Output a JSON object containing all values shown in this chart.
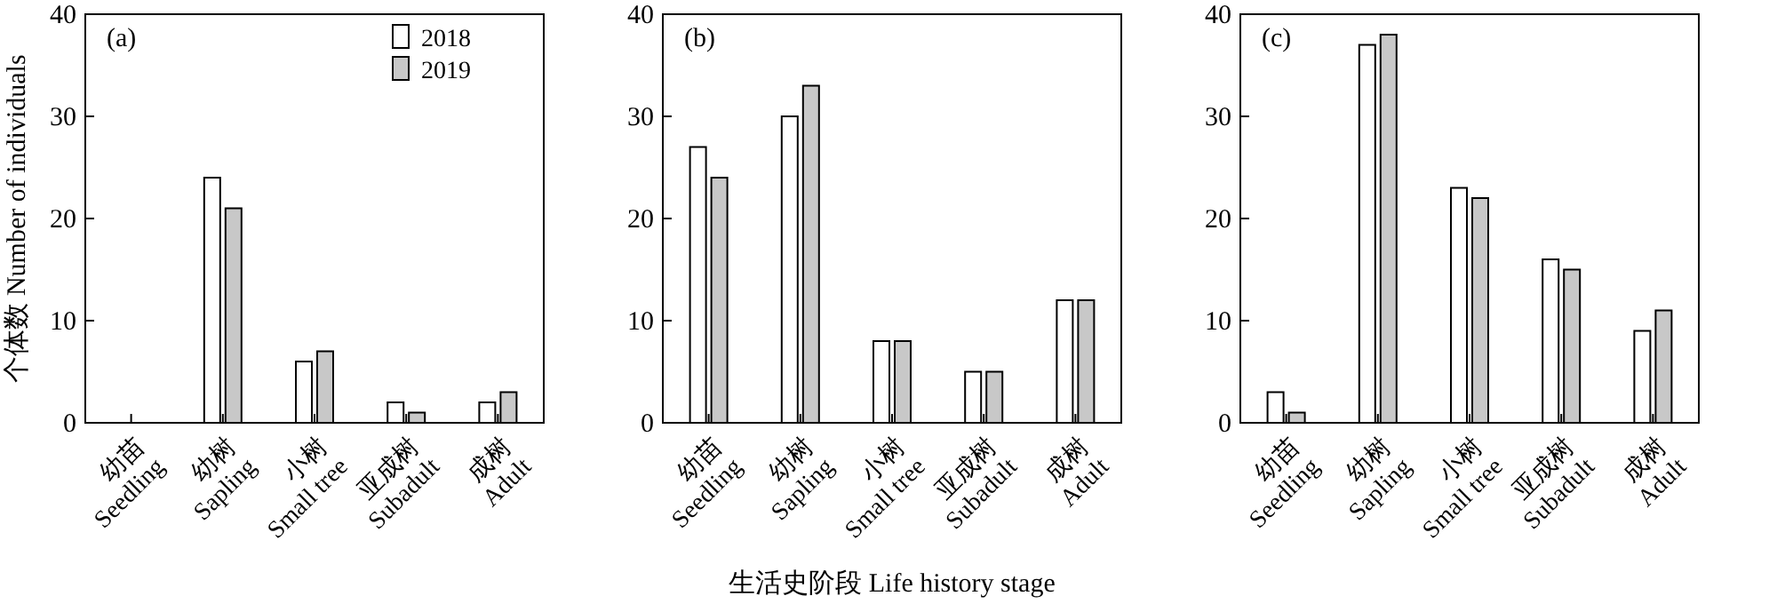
{
  "chart_data": [
    {
      "type": "bar",
      "annotations": [
        "(a)"
      ],
      "ylabel": "个体数 Number of individuals",
      "categories": [
        "幼苗\nSeedling",
        "幼树\nSapling",
        "小树\nSmall tree",
        "亚成树\nSubadult",
        "成树\nAdult"
      ],
      "ylim": [
        0,
        40
      ],
      "yticks": [
        0,
        10,
        20,
        30,
        40
      ],
      "grid": false,
      "legend": "top right",
      "series": [
        {
          "name": "2018",
          "color": "#ffffff",
          "values": [
            0,
            24,
            6,
            2,
            2
          ]
        },
        {
          "name": "2019",
          "color": "#c8c8c8",
          "values": [
            0,
            21,
            7,
            1,
            3
          ]
        }
      ]
    },
    {
      "type": "bar",
      "annotations": [
        "(b)"
      ],
      "xlabel": "生活史阶段 Life history stage",
      "categories": [
        "幼苗\nSeedling",
        "幼树\nSapling",
        "小树\nSmall tree",
        "亚成树\nSubadult",
        "成树\nAdult"
      ],
      "ylim": [
        0,
        40
      ],
      "yticks": [
        0,
        10,
        20,
        30,
        40
      ],
      "grid": false,
      "series": [
        {
          "color": "#ffffff",
          "values": [
            27,
            30,
            8,
            5,
            12
          ]
        },
        {
          "color": "#c8c8c8",
          "values": [
            24,
            33,
            8,
            5,
            12
          ]
        }
      ]
    },
    {
      "type": "bar",
      "annotations": [
        "(c)"
      ],
      "categories": [
        "幼苗\nSeedling",
        "幼树\nSapling",
        "小树\nSmall tree",
        "亚成树\nSubadult",
        "成树\nAdult"
      ],
      "ylim": [
        0,
        40
      ],
      "yticks": [
        0,
        10,
        20,
        30,
        40
      ],
      "grid": false,
      "series": [
        {
          "color": "#ffffff",
          "values": [
            3,
            37,
            23,
            16,
            9
          ]
        },
        {
          "color": "#c8c8c8",
          "values": [
            1,
            38,
            22,
            15,
            11
          ]
        }
      ]
    }
  ]
}
